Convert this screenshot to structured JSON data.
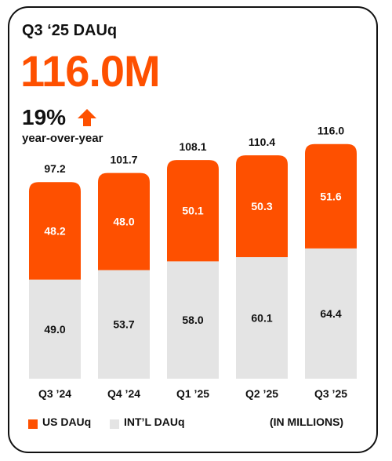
{
  "header": {
    "title": "Q3 ‘25 DAUq",
    "headline": "116.0M",
    "growth": "19%",
    "growth_label": "year-over-year"
  },
  "colors": {
    "us": "#fe5000",
    "intl": "#e4e4e4",
    "text": "#111111"
  },
  "chart_data": {
    "type": "bar",
    "stacked": true,
    "categories": [
      "Q3 ’24",
      "Q4 ’24",
      "Q1 ’25",
      "Q2 ’25",
      "Q3 ’25"
    ],
    "series": [
      {
        "name": "INT’L DAUq",
        "values": [
          49.0,
          53.7,
          58.0,
          60.1,
          64.4
        ]
      },
      {
        "name": "US DAUq",
        "values": [
          48.2,
          48.0,
          50.1,
          50.3,
          51.6
        ]
      }
    ],
    "totals": [
      97.2,
      101.7,
      108.1,
      110.4,
      116.0
    ],
    "grid": false,
    "legend": "bottom-left"
  },
  "legend": {
    "us_label": "US DAUq",
    "intl_label": "INT’L DAUq",
    "units": "(IN MILLIONS)"
  }
}
